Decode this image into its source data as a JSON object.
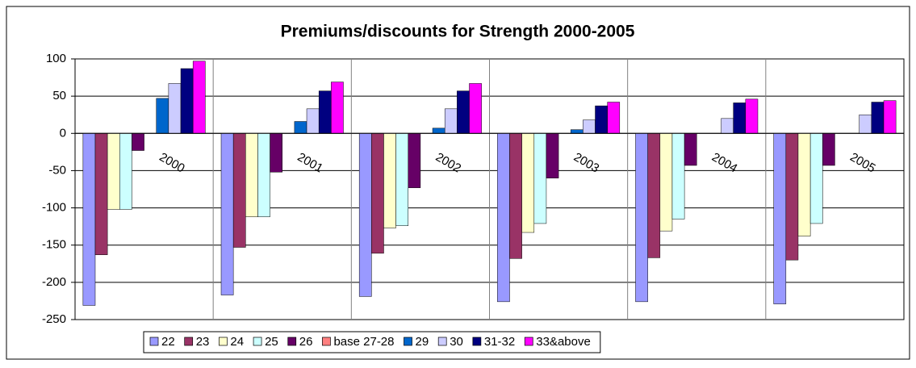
{
  "chart_data": {
    "type": "bar",
    "title": "Premiums/discounts for Strength 2000-2005",
    "categories": [
      "2000",
      "2001",
      "2002",
      "2003",
      "2004",
      "2005"
    ],
    "series": [
      {
        "name": "22",
        "color": "#9999ff",
        "values": [
          -231,
          -217,
          -219,
          -226,
          -226,
          -229
        ]
      },
      {
        "name": "23",
        "color": "#993366",
        "values": [
          -163,
          -153,
          -161,
          -168,
          -167,
          -170
        ]
      },
      {
        "name": "24",
        "color": "#ffffcc",
        "values": [
          -102,
          -112,
          -127,
          -133,
          -131,
          -138
        ]
      },
      {
        "name": "25",
        "color": "#ccffff",
        "values": [
          -102,
          -112,
          -124,
          -121,
          -115,
          -121
        ]
      },
      {
        "name": "26",
        "color": "#660066",
        "values": [
          -23,
          -52,
          -73,
          -60,
          -43,
          -43
        ]
      },
      {
        "name": "base 27-28",
        "color": "#ff8080",
        "values": [
          0,
          0,
          0,
          0,
          0,
          0
        ]
      },
      {
        "name": "29",
        "color": "#0066cc",
        "values": [
          47,
          16,
          7,
          5,
          0,
          0
        ]
      },
      {
        "name": "30",
        "color": "#ccccff",
        "values": [
          67,
          33,
          33,
          18,
          20,
          25
        ]
      },
      {
        "name": "31-32",
        "color": "#000080",
        "values": [
          87,
          57,
          57,
          37,
          41,
          42
        ]
      },
      {
        "name": "33&above",
        "color": "#ff00ff",
        "values": [
          97,
          69,
          67,
          42,
          46,
          44
        ]
      }
    ],
    "ylim": [
      -250,
      100
    ],
    "yticks": [
      -250,
      -200,
      -150,
      -100,
      -50,
      0,
      50,
      100
    ],
    "grid": true,
    "legend": "bottom"
  }
}
